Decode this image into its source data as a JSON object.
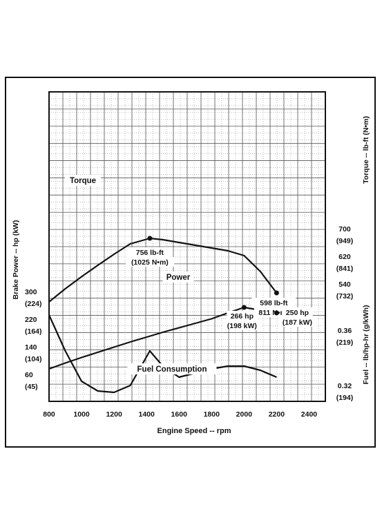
{
  "chart_data": {
    "type": "line",
    "x": [
      800,
      1000,
      1200,
      1400,
      1600,
      1800,
      2000,
      2200,
      2400
    ],
    "xlabel": "Engine Speed -- rpm",
    "x_tick_labels": [
      "800",
      "1000",
      "1200",
      "1400",
      "1600",
      "1800",
      "2000",
      "2200",
      "2400"
    ],
    "xlim": [
      800,
      2500
    ],
    "grid": true,
    "series": [
      {
        "name": "Torque",
        "axis": "right",
        "unit": "lb-ft",
        "points": [
          [
            800,
            572
          ],
          [
            900,
            610
          ],
          [
            1000,
            645
          ],
          [
            1100,
            678
          ],
          [
            1200,
            710
          ],
          [
            1300,
            740
          ],
          [
            1420,
            756
          ],
          [
            1500,
            752
          ],
          [
            1600,
            744
          ],
          [
            1700,
            736
          ],
          [
            1800,
            728
          ],
          [
            1900,
            720
          ],
          [
            2000,
            706
          ],
          [
            2100,
            660
          ],
          [
            2200,
            598
          ]
        ]
      },
      {
        "name": "Power",
        "axis": "left",
        "unit": "hp",
        "points": [
          [
            800,
            88
          ],
          [
            900,
            105
          ],
          [
            1000,
            121
          ],
          [
            1100,
            136
          ],
          [
            1200,
            151
          ],
          [
            1300,
            166
          ],
          [
            1400,
            180
          ],
          [
            1500,
            194
          ],
          [
            1600,
            207
          ],
          [
            1700,
            220
          ],
          [
            1800,
            233
          ],
          [
            1900,
            250
          ],
          [
            2000,
            266
          ],
          [
            2100,
            258
          ],
          [
            2200,
            250
          ]
        ]
      },
      {
        "name": "Fuel Consumption",
        "axis": "fuel",
        "unit": "lb/hp-hr",
        "points": [
          [
            800,
            0.373
          ],
          [
            900,
            0.347
          ],
          [
            1000,
            0.325
          ],
          [
            1100,
            0.318
          ],
          [
            1200,
            0.317
          ],
          [
            1300,
            0.322
          ],
          [
            1420,
            0.347
          ],
          [
            1500,
            0.336
          ],
          [
            1600,
            0.328
          ],
          [
            1700,
            0.331
          ],
          [
            1800,
            0.334
          ],
          [
            1900,
            0.336
          ],
          [
            2000,
            0.336
          ],
          [
            2100,
            0.333
          ],
          [
            2200,
            0.328
          ]
        ]
      }
    ],
    "axes": {
      "torque": {
        "label": "Torque -- lb-ft (N•m)",
        "ticks": [
          {
            "value": 700,
            "label": "700",
            "sublabel": "(949)"
          },
          {
            "value": 620,
            "label": "620",
            "sublabel": "(841)"
          },
          {
            "value": 540,
            "label": "540",
            "sublabel": "(732)"
          }
        ]
      },
      "power": {
        "label": "Brake Power -- hp (kW)",
        "ticks": [
          {
            "value": 300,
            "label": "300",
            "sublabel": "(224)"
          },
          {
            "value": 220,
            "label": "220",
            "sublabel": "(164)"
          },
          {
            "value": 140,
            "label": "140",
            "sublabel": "(104)"
          },
          {
            "value": 60,
            "label": "60",
            "sublabel": "(45)"
          }
        ]
      },
      "fuel": {
        "label": "Fuel -- lb/hp-hr (g/kWh)",
        "ticks": [
          {
            "value": 0.36,
            "label": "0.36",
            "sublabel": "(219)"
          },
          {
            "value": 0.32,
            "label": "0.32",
            "sublabel": "(194)"
          }
        ]
      }
    },
    "curve_labels": [
      {
        "series": "Torque",
        "text": "Torque"
      },
      {
        "series": "Power",
        "text": "Power"
      },
      {
        "series": "Fuel Consumption",
        "text": "Fuel  Consumption"
      }
    ],
    "annotations": [
      {
        "series": "Torque",
        "x": 1420,
        "y": 756,
        "marker": true,
        "lines": [
          "756 lb-ft",
          "(1025 N•m)"
        ]
      },
      {
        "series": "Torque",
        "x": 2200,
        "y": 598,
        "marker": true,
        "lines": [
          "598 lb-ft",
          "811 N•m)"
        ]
      },
      {
        "series": "Power",
        "x": 2000,
        "y": 266,
        "marker": true,
        "lines": [
          "266 hp",
          "(198 kW)"
        ]
      },
      {
        "series": "Power",
        "x": 2200,
        "y": 250,
        "marker": true,
        "lines": [
          "250 hp",
          "(187 kW)"
        ]
      }
    ],
    "colors": {
      "line": "#111111",
      "grid": "#555555",
      "background": "#ffffff"
    }
  }
}
